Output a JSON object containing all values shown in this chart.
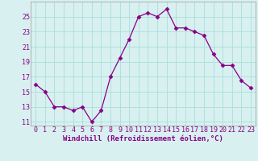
{
  "x": [
    0,
    1,
    2,
    3,
    4,
    5,
    6,
    7,
    8,
    9,
    10,
    11,
    12,
    13,
    14,
    15,
    16,
    17,
    18,
    19,
    20,
    21,
    22,
    23
  ],
  "y": [
    16,
    15,
    13,
    13,
    12.5,
    13,
    11,
    12.5,
    17,
    19.5,
    22,
    25,
    25.5,
    25,
    26,
    23.5,
    23.5,
    23,
    22.5,
    20,
    18.5,
    18.5,
    16.5,
    15.5
  ],
  "line_color": "#880088",
  "marker": "D",
  "marker_size": 2.5,
  "bg_color": "#d8f0f0",
  "grid_color": "#aadddd",
  "xlabel": "Windchill (Refroidissement éolien,°C)",
  "xlabel_color": "#880088",
  "xlabel_fontsize": 6.5,
  "tick_color": "#880088",
  "tick_fontsize": 6,
  "yticks": [
    11,
    13,
    15,
    17,
    19,
    21,
    23,
    25
  ],
  "ylim": [
    10.5,
    27
  ],
  "xlim": [
    -0.5,
    23.5
  ],
  "xticks": [
    0,
    1,
    2,
    3,
    4,
    5,
    6,
    7,
    8,
    9,
    10,
    11,
    12,
    13,
    14,
    15,
    16,
    17,
    18,
    19,
    20,
    21,
    22,
    23
  ]
}
